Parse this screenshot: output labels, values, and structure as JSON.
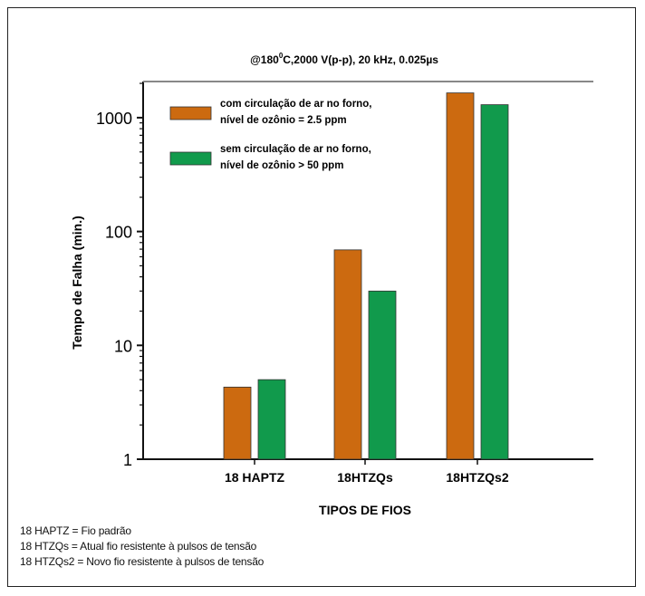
{
  "chart_data": {
    "type": "bar",
    "title": "@180°C,2000 V(p-p), 20 kHz, 0.025µs",
    "title_prefix": "@180",
    "title_superscript": "0",
    "title_suffix": "C,2000 V(p-p), 20 kHz, 0.025µs",
    "xlabel": "TIPOS DE FIOS",
    "ylabel": "Tempo de Falha (min.)",
    "yscale": "log",
    "ylim": [
      1,
      2000
    ],
    "yticks": [
      1,
      10,
      100,
      1000
    ],
    "ytick_labels": [
      "1",
      "10",
      "100",
      "1000"
    ],
    "categories": [
      "18 HAPTZ",
      "18HTZQs",
      "18HTZQs2"
    ],
    "series": [
      {
        "name": "com circulação de ar no forno, nível de ozônio = 2.5 ppm",
        "legend_lines": [
          "com circulação de ar no forno,",
          "nível de ozônio = 2.5 ppm"
        ],
        "color": "#cc6a10",
        "values": [
          4.3,
          69,
          1650
        ]
      },
      {
        "name": "sem circulação de ar no forno, nível de ozônio > 50 ppm",
        "legend_lines": [
          "sem circulação de ar no forno,",
          "nível de ozônio > 50 ppm"
        ],
        "color": "#119a4c",
        "values": [
          5.0,
          30,
          1300
        ]
      }
    ],
    "legend_position": "top-left",
    "grid": false
  },
  "notes": [
    "18 HAPTZ = Fio padrão",
    "18 HTZQs = Atual fio resistente à pulsos de tensão",
    "18 HTZQs2 = Novo fio resistente à pulsos de tensão"
  ]
}
